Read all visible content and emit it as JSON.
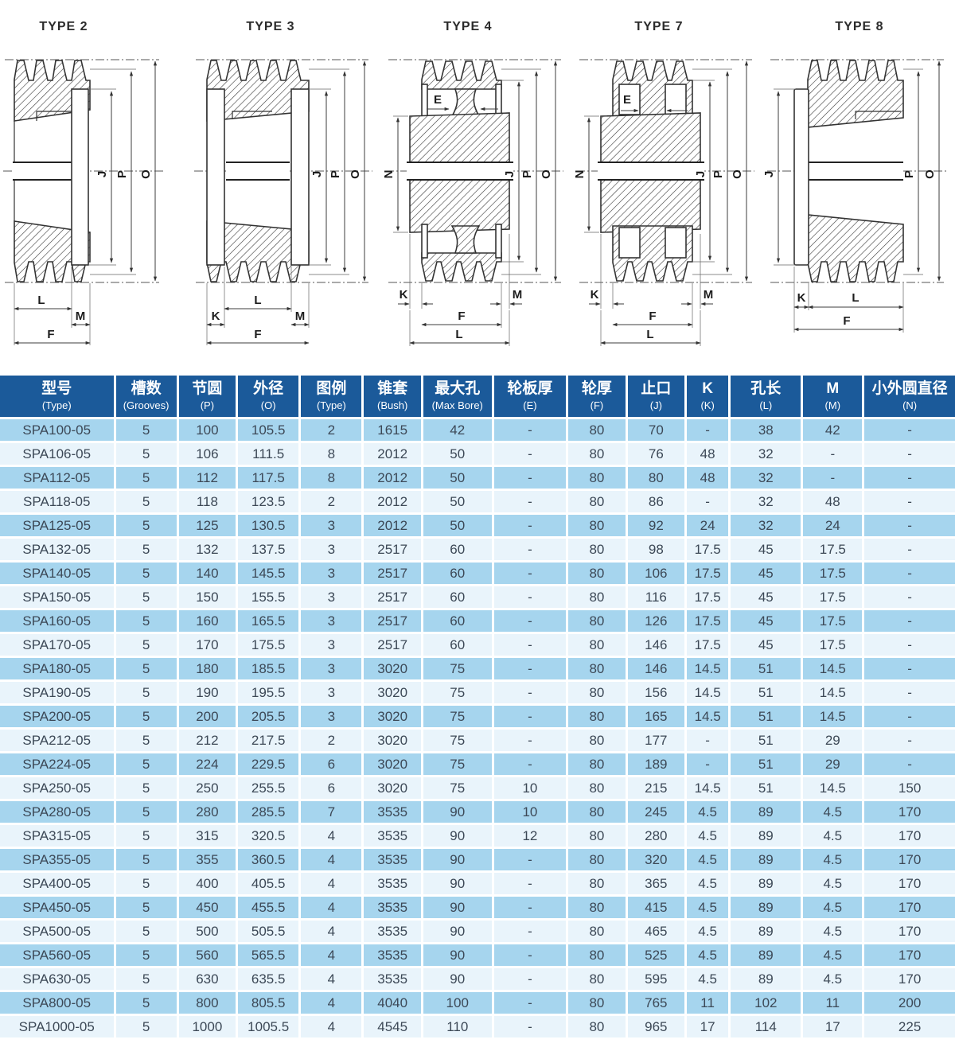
{
  "colors": {
    "header-bg": "#1b5a9a",
    "header-text": "#ffffff",
    "stripe-dark": "#a6d5ee",
    "stripe-light": "#e9f4fb",
    "cell-text": "#3c4856",
    "drawing-line": "#333333"
  },
  "diagrams": [
    {
      "title": "TYPE 2",
      "labels": {
        "J": "J",
        "P": "P",
        "O": "O",
        "L": "L",
        "M": "M",
        "F": "F"
      }
    },
    {
      "title": "TYPE 3",
      "labels": {
        "J": "J",
        "P": "P",
        "O": "O",
        "K": "K",
        "L": "L",
        "M": "M",
        "F": "F"
      }
    },
    {
      "title": "TYPE 4",
      "labels": {
        "E": "E",
        "N": "N",
        "J": "J",
        "P": "P",
        "O": "O",
        "K": "K",
        "M": "M",
        "F": "F",
        "L": "L"
      }
    },
    {
      "title": "TYPE 7",
      "labels": {
        "E": "E",
        "N": "N",
        "J": "J",
        "P": "P",
        "O": "O",
        "K": "K",
        "M": "M",
        "F": "F",
        "L": "L"
      }
    },
    {
      "title": "TYPE 8",
      "labels": {
        "J": "J",
        "P": "P",
        "O": "O",
        "K": "K",
        "L": "L",
        "F": "F"
      }
    }
  ],
  "table": {
    "headers": [
      {
        "zh": "型号",
        "en": "(Type)"
      },
      {
        "zh": "槽数",
        "en": "(Grooves)"
      },
      {
        "zh": "节圆",
        "en": "(P)"
      },
      {
        "zh": "外径",
        "en": "(O)"
      },
      {
        "zh": "图例",
        "en": "(Type)"
      },
      {
        "zh": "锥套",
        "en": "(Bush)"
      },
      {
        "zh": "最大孔",
        "en": "(Max Bore)"
      },
      {
        "zh": "轮板厚",
        "en": "(E)"
      },
      {
        "zh": "轮厚",
        "en": "(F)"
      },
      {
        "zh": "止口",
        "en": "(J)"
      },
      {
        "zh": "K",
        "en": "(K)"
      },
      {
        "zh": "孔长",
        "en": "(L)"
      },
      {
        "zh": "M",
        "en": "(M)"
      },
      {
        "zh": "小外圆直径",
        "en": "(N)"
      }
    ],
    "rows": [
      [
        "SPA100-05",
        "5",
        "100",
        "105.5",
        "2",
        "1615",
        "42",
        "-",
        "80",
        "70",
        "-",
        "38",
        "42",
        "-"
      ],
      [
        "SPA106-05",
        "5",
        "106",
        "111.5",
        "8",
        "2012",
        "50",
        "-",
        "80",
        "76",
        "48",
        "32",
        "-",
        "-"
      ],
      [
        "SPA112-05",
        "5",
        "112",
        "117.5",
        "8",
        "2012",
        "50",
        "-",
        "80",
        "80",
        "48",
        "32",
        "-",
        "-"
      ],
      [
        "SPA118-05",
        "5",
        "118",
        "123.5",
        "2",
        "2012",
        "50",
        "-",
        "80",
        "86",
        "-",
        "32",
        "48",
        "-"
      ],
      [
        "SPA125-05",
        "5",
        "125",
        "130.5",
        "3",
        "2012",
        "50",
        "-",
        "80",
        "92",
        "24",
        "32",
        "24",
        "-"
      ],
      [
        "SPA132-05",
        "5",
        "132",
        "137.5",
        "3",
        "2517",
        "60",
        "-",
        "80",
        "98",
        "17.5",
        "45",
        "17.5",
        "-"
      ],
      [
        "SPA140-05",
        "5",
        "140",
        "145.5",
        "3",
        "2517",
        "60",
        "-",
        "80",
        "106",
        "17.5",
        "45",
        "17.5",
        "-"
      ],
      [
        "SPA150-05",
        "5",
        "150",
        "155.5",
        "3",
        "2517",
        "60",
        "-",
        "80",
        "116",
        "17.5",
        "45",
        "17.5",
        "-"
      ],
      [
        "SPA160-05",
        "5",
        "160",
        "165.5",
        "3",
        "2517",
        "60",
        "-",
        "80",
        "126",
        "17.5",
        "45",
        "17.5",
        "-"
      ],
      [
        "SPA170-05",
        "5",
        "170",
        "175.5",
        "3",
        "2517",
        "60",
        "-",
        "80",
        "146",
        "17.5",
        "45",
        "17.5",
        "-"
      ],
      [
        "SPA180-05",
        "5",
        "180",
        "185.5",
        "3",
        "3020",
        "75",
        "-",
        "80",
        "146",
        "14.5",
        "51",
        "14.5",
        "-"
      ],
      [
        "SPA190-05",
        "5",
        "190",
        "195.5",
        "3",
        "3020",
        "75",
        "-",
        "80",
        "156",
        "14.5",
        "51",
        "14.5",
        "-"
      ],
      [
        "SPA200-05",
        "5",
        "200",
        "205.5",
        "3",
        "3020",
        "75",
        "-",
        "80",
        "165",
        "14.5",
        "51",
        "14.5",
        "-"
      ],
      [
        "SPA212-05",
        "5",
        "212",
        "217.5",
        "2",
        "3020",
        "75",
        "-",
        "80",
        "177",
        "-",
        "51",
        "29",
        "-"
      ],
      [
        "SPA224-05",
        "5",
        "224",
        "229.5",
        "6",
        "3020",
        "75",
        "-",
        "80",
        "189",
        "-",
        "51",
        "29",
        "-"
      ],
      [
        "SPA250-05",
        "5",
        "250",
        "255.5",
        "6",
        "3020",
        "75",
        "10",
        "80",
        "215",
        "14.5",
        "51",
        "14.5",
        "150"
      ],
      [
        "SPA280-05",
        "5",
        "280",
        "285.5",
        "7",
        "3535",
        "90",
        "10",
        "80",
        "245",
        "4.5",
        "89",
        "4.5",
        "170"
      ],
      [
        "SPA315-05",
        "5",
        "315",
        "320.5",
        "4",
        "3535",
        "90",
        "12",
        "80",
        "280",
        "4.5",
        "89",
        "4.5",
        "170"
      ],
      [
        "SPA355-05",
        "5",
        "355",
        "360.5",
        "4",
        "3535",
        "90",
        "-",
        "80",
        "320",
        "4.5",
        "89",
        "4.5",
        "170"
      ],
      [
        "SPA400-05",
        "5",
        "400",
        "405.5",
        "4",
        "3535",
        "90",
        "-",
        "80",
        "365",
        "4.5",
        "89",
        "4.5",
        "170"
      ],
      [
        "SPA450-05",
        "5",
        "450",
        "455.5",
        "4",
        "3535",
        "90",
        "-",
        "80",
        "415",
        "4.5",
        "89",
        "4.5",
        "170"
      ],
      [
        "SPA500-05",
        "5",
        "500",
        "505.5",
        "4",
        "3535",
        "90",
        "-",
        "80",
        "465",
        "4.5",
        "89",
        "4.5",
        "170"
      ],
      [
        "SPA560-05",
        "5",
        "560",
        "565.5",
        "4",
        "3535",
        "90",
        "-",
        "80",
        "525",
        "4.5",
        "89",
        "4.5",
        "170"
      ],
      [
        "SPA630-05",
        "5",
        "630",
        "635.5",
        "4",
        "3535",
        "90",
        "-",
        "80",
        "595",
        "4.5",
        "89",
        "4.5",
        "170"
      ],
      [
        "SPA800-05",
        "5",
        "800",
        "805.5",
        "4",
        "4040",
        "100",
        "-",
        "80",
        "765",
        "11",
        "102",
        "11",
        "200"
      ],
      [
        "SPA1000-05",
        "5",
        "1000",
        "1005.5",
        "4",
        "4545",
        "110",
        "-",
        "80",
        "965",
        "17",
        "114",
        "17",
        "225"
      ]
    ]
  }
}
